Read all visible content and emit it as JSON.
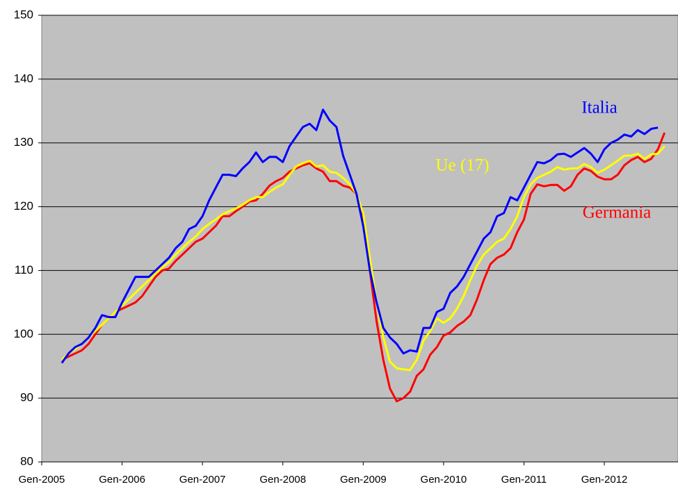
{
  "chart_data": {
    "type": "line",
    "categories": [
      "Gen-2005",
      null,
      null,
      null,
      null,
      null,
      null,
      null,
      null,
      null,
      null,
      null,
      "Gen-2006",
      null,
      null,
      null,
      null,
      null,
      null,
      null,
      null,
      null,
      null,
      null,
      "Gen-2007",
      null,
      null,
      null,
      null,
      null,
      null,
      null,
      null,
      null,
      null,
      null,
      "Gen-2008",
      null,
      null,
      null,
      null,
      null,
      null,
      null,
      null,
      null,
      null,
      null,
      "Gen-2009",
      null,
      null,
      null,
      null,
      null,
      null,
      null,
      null,
      null,
      null,
      null,
      "Gen-2010",
      null,
      null,
      null,
      null,
      null,
      null,
      null,
      null,
      null,
      null,
      null,
      "Gen-2011",
      null,
      null,
      null,
      null,
      null,
      null,
      null,
      null,
      null,
      null,
      null,
      "Gen-2012",
      null,
      null,
      null,
      null,
      null,
      null,
      null,
      null,
      null,
      null
    ],
    "series": [
      {
        "name": "Italia",
        "color": "#0000ff",
        "values": [
          null,
          null,
          null,
          95.5,
          97,
          98,
          98.5,
          99.5,
          101,
          103,
          102.7,
          102.7,
          105,
          107,
          109,
          109,
          109,
          110,
          111,
          112,
          113.5,
          114.5,
          116.5,
          117,
          118.5,
          121,
          123,
          125,
          125,
          124.8,
          126,
          127,
          128.5,
          127,
          127.8,
          127.8,
          127,
          129.5,
          131,
          132.5,
          133,
          132,
          135.2,
          133.5,
          132.5,
          128,
          125,
          122,
          117,
          110,
          105,
          101,
          99.5,
          98.5,
          97,
          97.5,
          97.3,
          101,
          101,
          103.5,
          104,
          106.5,
          107.5,
          109,
          111,
          113,
          115,
          116,
          118.5,
          119,
          121.5,
          121,
          123,
          125,
          127,
          126.8,
          127.3,
          128.2,
          128.3,
          127.8,
          128.5,
          129.2,
          128.3,
          127,
          129,
          130,
          130.5,
          131.3,
          131,
          132,
          131.4,
          132.2,
          132.4,
          null,
          null
        ]
      },
      {
        "name": "Ue (17)",
        "color": "#ffff00",
        "values": [
          null,
          null,
          null,
          96,
          97,
          97.7,
          98.5,
          99.5,
          100.5,
          101.5,
          102.5,
          103.5,
          104.5,
          105.5,
          106.5,
          107.5,
          108.5,
          109.5,
          110.5,
          111.3,
          112.5,
          113.5,
          114.5,
          115.3,
          116.5,
          117.3,
          118,
          118.8,
          119.3,
          119.7,
          120.3,
          121,
          121.5,
          121.5,
          122.3,
          123,
          123.5,
          125,
          126.3,
          126.8,
          127.2,
          126.3,
          126.5,
          125.5,
          125.3,
          124.5,
          123.5,
          122,
          119,
          112,
          105,
          99.5,
          95.7,
          94.7,
          94.5,
          94.4,
          96,
          99,
          100.5,
          102.5,
          101.8,
          102.5,
          104,
          106,
          108.5,
          110.8,
          112.5,
          113.5,
          114.5,
          115,
          116.5,
          118.5,
          121.5,
          123.5,
          124.5,
          125,
          125.5,
          126.2,
          125.8,
          126,
          126,
          126.7,
          126.2,
          125.3,
          125.8,
          126.5,
          127.2,
          128,
          128,
          128.3,
          127.5,
          128.2,
          128.3,
          129.5,
          null
        ]
      },
      {
        "name": "Germania",
        "color": "#ff0000",
        "values": [
          null,
          null,
          null,
          96,
          96.5,
          97,
          97.5,
          98.5,
          100,
          101.5,
          102.5,
          103.5,
          104,
          104.5,
          105,
          106,
          107.5,
          109,
          110,
          110.3,
          111.5,
          112.5,
          113.5,
          114.5,
          115,
          116,
          117,
          118.5,
          118.5,
          119.3,
          120,
          120.8,
          121,
          122,
          123.3,
          124,
          124.5,
          125.5,
          126,
          126.5,
          126.8,
          126,
          125.5,
          124,
          124,
          123.3,
          123,
          122,
          118,
          110,
          102,
          96,
          91.5,
          89.5,
          90,
          91,
          93.5,
          94.5,
          96.8,
          98,
          99.8,
          100.3,
          101.3,
          102,
          103,
          105.5,
          108.5,
          111,
          112,
          112.5,
          113.5,
          116,
          118,
          122,
          123.5,
          123.2,
          123.4,
          123.4,
          122.5,
          123.2,
          125,
          126,
          125.6,
          124.7,
          124.3,
          124.3,
          125,
          126.5,
          127.3,
          127.8,
          127,
          127.5,
          129,
          131.6,
          null
        ]
      }
    ],
    "ylim": [
      80,
      150
    ],
    "yticks": [
      80,
      90,
      100,
      110,
      120,
      130,
      140,
      150
    ],
    "grid": true
  }
}
